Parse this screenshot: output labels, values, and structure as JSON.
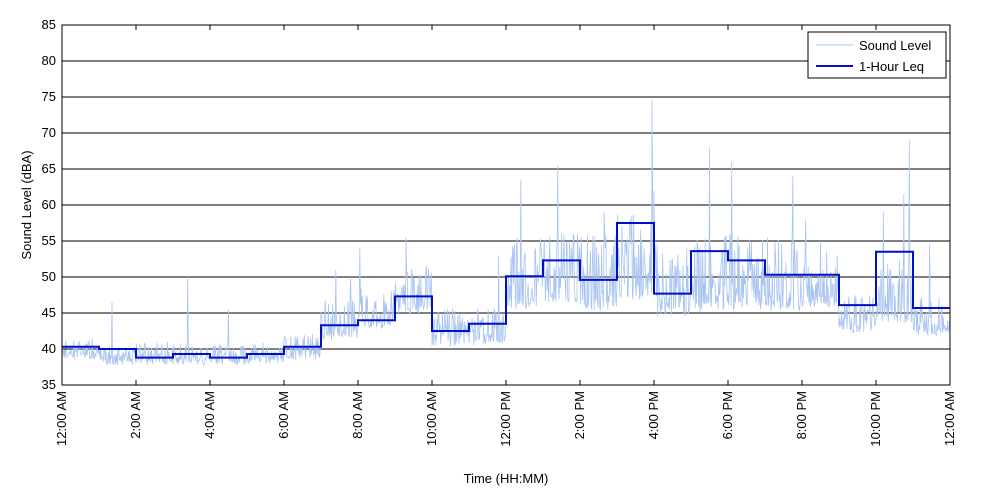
{
  "chart_data": {
    "type": "line",
    "xlabel": "Time (HH:MM)",
    "ylabel": "Sound Level (dBA)",
    "ylim": [
      35,
      85
    ],
    "yticks": [
      35,
      40,
      45,
      50,
      55,
      60,
      65,
      70,
      75,
      80,
      85
    ],
    "xlim_hours": [
      0,
      24
    ],
    "xtick_hours": [
      0,
      2,
      4,
      6,
      8,
      10,
      12,
      14,
      16,
      18,
      20,
      22,
      24
    ],
    "xtick_labels": [
      "12:00 AM",
      "2:00 AM",
      "4:00 AM",
      "6:00 AM",
      "8:00 AM",
      "10:00 AM",
      "12:00 PM",
      "2:00 PM",
      "4:00 PM",
      "6:00 PM",
      "8:00 PM",
      "10:00 PM",
      "12:00 AM"
    ],
    "grid": "horizontal",
    "legend_position": "top-right",
    "series": [
      {
        "name": "Sound Level",
        "color": "#a9c4f2",
        "style": "thin noisy line",
        "hourly_base": [
          39,
          38.5,
          38.5,
          38.5,
          38.5,
          38.5,
          39,
          42,
          43.5,
          45.5,
          41,
          41,
          46,
          47,
          46,
          47.5,
          45,
          46,
          46,
          46,
          46.5,
          43,
          44,
          42.5
        ],
        "hourly_amplitude": [
          1.5,
          1.5,
          1.5,
          1.5,
          1.5,
          1.5,
          2,
          3,
          3,
          4,
          3,
          3,
          6,
          6,
          6,
          7,
          6,
          6,
          6,
          6,
          5,
          3,
          5,
          3
        ],
        "peaks": [
          {
            "hour": 1.35,
            "value": 46.5
          },
          {
            "hour": 3.4,
            "value": 50
          },
          {
            "hour": 4.5,
            "value": 45.5
          },
          {
            "hour": 7.4,
            "value": 51
          },
          {
            "hour": 7.8,
            "value": 50
          },
          {
            "hour": 8.05,
            "value": 54
          },
          {
            "hour": 9.3,
            "value": 55.5
          },
          {
            "hour": 11.8,
            "value": 53
          },
          {
            "hour": 12.4,
            "value": 63.5
          },
          {
            "hour": 13.4,
            "value": 65.5
          },
          {
            "hour": 14.65,
            "value": 59
          },
          {
            "hour": 15.4,
            "value": 58.5
          },
          {
            "hour": 15.95,
            "value": 74.5
          },
          {
            "hour": 16.0,
            "value": 62
          },
          {
            "hour": 17.5,
            "value": 68
          },
          {
            "hour": 18.1,
            "value": 66
          },
          {
            "hour": 19.75,
            "value": 64
          },
          {
            "hour": 20.1,
            "value": 58
          },
          {
            "hour": 20.5,
            "value": 55
          },
          {
            "hour": 22.2,
            "value": 59
          },
          {
            "hour": 22.75,
            "value": 61.5
          },
          {
            "hour": 22.9,
            "value": 69
          },
          {
            "hour": 23.45,
            "value": 54.5
          }
        ]
      },
      {
        "name": "1-Hour Leq",
        "color": "#0010c8",
        "style": "step",
        "hours": [
          0,
          1,
          2,
          3,
          4,
          5,
          6,
          7,
          8,
          9,
          10,
          11,
          12,
          13,
          14,
          15,
          16,
          17,
          18,
          19,
          20,
          21,
          22,
          23
        ],
        "values": [
          40.3,
          40.0,
          38.8,
          39.3,
          38.8,
          39.3,
          40.3,
          43.3,
          44.0,
          47.3,
          42.5,
          43.5,
          50.1,
          52.3,
          49.6,
          57.5,
          47.7,
          53.6,
          52.3,
          50.3,
          50.3,
          46.1,
          53.5,
          45.7
        ]
      }
    ]
  }
}
